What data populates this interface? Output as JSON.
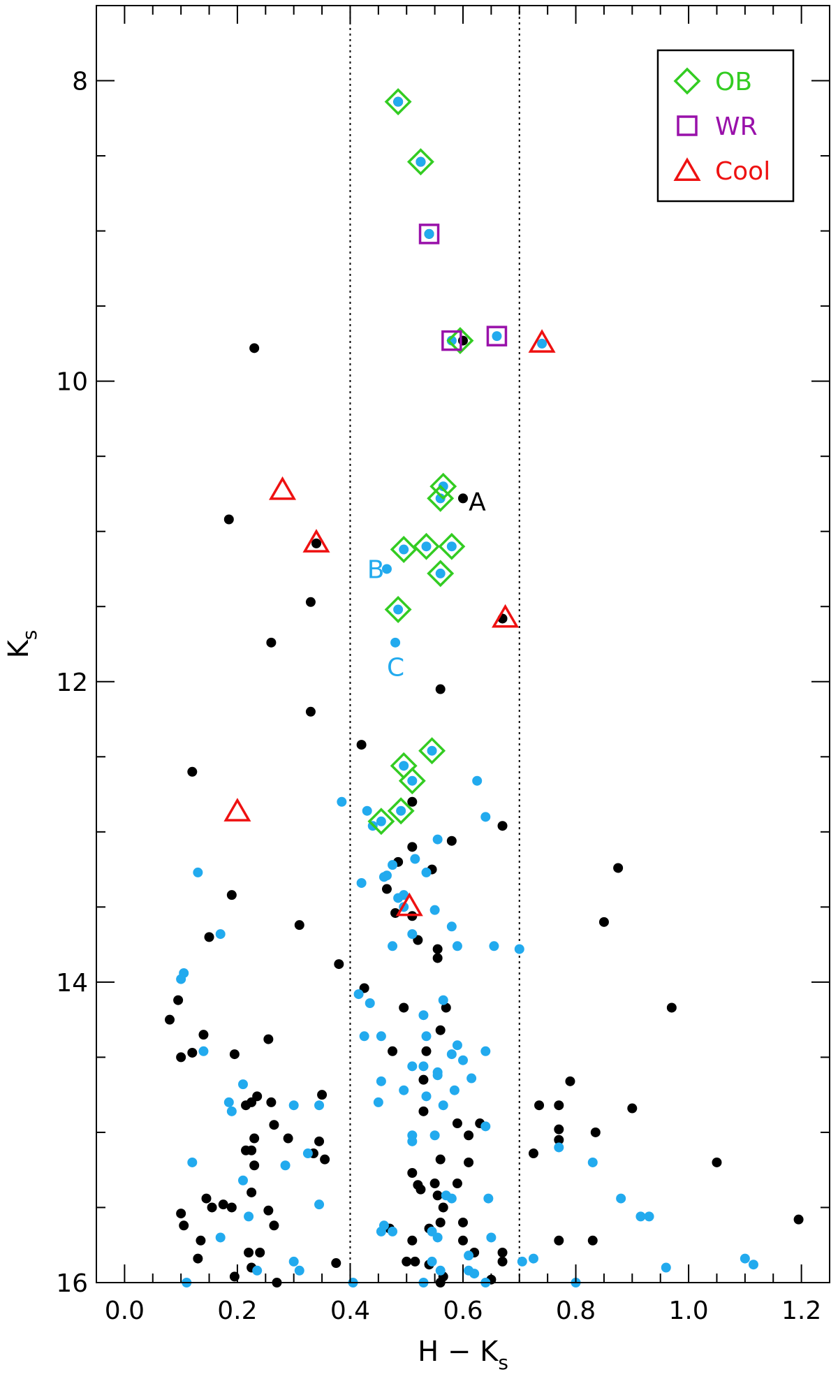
{
  "chart_data": {
    "type": "scatter",
    "xlabel": "H − K",
    "xlabel_sub": "s",
    "ylabel": "K",
    "ylabel_sub": "s",
    "xlim": [
      -0.05,
      1.25
    ],
    "ylim": [
      16,
      7.5
    ],
    "y_inverted": true,
    "x_ticks": [
      "0.0",
      "0.2",
      "0.4",
      "0.6",
      "0.8",
      "1.0",
      "1.2"
    ],
    "y_ticks": [
      "8",
      "10",
      "12",
      "14",
      "16"
    ],
    "vertical_dotted_lines": [
      0.4,
      0.7
    ],
    "legend": {
      "placement": "top-right",
      "entries": [
        {
          "marker": "diamond",
          "label": "OB",
          "color": "#33cc22"
        },
        {
          "marker": "square",
          "label": "WR",
          "color": "#9911aa"
        },
        {
          "marker": "triangle",
          "label": "Cool",
          "color": "#ee1111"
        }
      ]
    },
    "annotations": [
      {
        "text": "A",
        "x": 0.61,
        "y": 10.8,
        "color": "#000000"
      },
      {
        "text": "B",
        "x": 0.43,
        "y": 11.25,
        "color": "#22aaee"
      },
      {
        "text": "C",
        "x": 0.465,
        "y": 11.9,
        "color": "#22aaee"
      }
    ],
    "colors": {
      "black_points": "#000000",
      "blue_points": "#22aaee",
      "ob": "#33cc22",
      "wr": "#9911aa",
      "cool": "#ee1111"
    },
    "ob_stars": [
      [
        0.485,
        8.14
      ],
      [
        0.525,
        8.54
      ],
      [
        0.595,
        9.73
      ],
      [
        0.565,
        10.7
      ],
      [
        0.56,
        10.78
      ],
      [
        0.495,
        11.12
      ],
      [
        0.535,
        11.1
      ],
      [
        0.58,
        11.1
      ],
      [
        0.56,
        11.28
      ],
      [
        0.485,
        11.52
      ],
      [
        0.545,
        12.46
      ],
      [
        0.495,
        12.56
      ],
      [
        0.51,
        12.66
      ],
      [
        0.49,
        12.86
      ],
      [
        0.455,
        12.93
      ]
    ],
    "wr_stars": [
      [
        0.54,
        9.02
      ],
      [
        0.58,
        9.73
      ],
      [
        0.66,
        9.7
      ]
    ],
    "cool_stars": [
      [
        0.74,
        9.75
      ],
      [
        0.28,
        10.73
      ],
      [
        0.34,
        11.08
      ],
      [
        0.675,
        11.58
      ],
      [
        0.2,
        12.87
      ],
      [
        0.505,
        13.5
      ]
    ],
    "black_points": [
      [
        0.485,
        8.14
      ],
      [
        0.525,
        8.54
      ],
      [
        0.54,
        9.02
      ],
      [
        0.23,
        9.78
      ],
      [
        0.6,
        9.73
      ],
      [
        0.6,
        10.78
      ],
      [
        0.185,
        10.92
      ],
      [
        0.34,
        11.08
      ],
      [
        0.33,
        11.47
      ],
      [
        0.26,
        11.74
      ],
      [
        0.67,
        11.58
      ],
      [
        0.56,
        12.05
      ],
      [
        0.33,
        12.2
      ],
      [
        0.42,
        12.42
      ],
      [
        0.12,
        12.6
      ],
      [
        0.51,
        12.8
      ],
      [
        0.67,
        12.96
      ],
      [
        0.58,
        13.06
      ],
      [
        0.51,
        13.1
      ],
      [
        0.545,
        13.25
      ],
      [
        0.485,
        13.2
      ],
      [
        0.19,
        13.42
      ],
      [
        0.465,
        13.38
      ],
      [
        0.48,
        13.54
      ],
      [
        0.51,
        13.56
      ],
      [
        0.875,
        13.24
      ],
      [
        0.85,
        13.6
      ],
      [
        0.31,
        13.62
      ],
      [
        0.15,
        13.7
      ],
      [
        0.52,
        13.72
      ],
      [
        0.555,
        13.78
      ],
      [
        0.555,
        13.84
      ],
      [
        0.38,
        13.88
      ],
      [
        0.425,
        14.04
      ],
      [
        0.495,
        14.17
      ],
      [
        0.56,
        14.32
      ],
      [
        0.57,
        14.17
      ],
      [
        0.97,
        14.17
      ],
      [
        0.08,
        14.25
      ],
      [
        0.095,
        14.12
      ],
      [
        0.14,
        14.35
      ],
      [
        0.255,
        14.38
      ],
      [
        0.1,
        14.5
      ],
      [
        0.12,
        14.47
      ],
      [
        0.195,
        14.48
      ],
      [
        0.475,
        14.46
      ],
      [
        0.535,
        14.46
      ],
      [
        0.53,
        14.65
      ],
      [
        0.79,
        14.66
      ],
      [
        0.35,
        14.75
      ],
      [
        0.235,
        14.76
      ],
      [
        0.225,
        14.8
      ],
      [
        0.26,
        14.8
      ],
      [
        0.215,
        14.82
      ],
      [
        0.735,
        14.82
      ],
      [
        0.77,
        14.82
      ],
      [
        0.9,
        14.84
      ],
      [
        0.53,
        14.86
      ],
      [
        0.59,
        14.94
      ],
      [
        0.63,
        14.94
      ],
      [
        0.265,
        14.95
      ],
      [
        0.77,
        14.98
      ],
      [
        0.835,
        15.0
      ],
      [
        0.61,
        15.02
      ],
      [
        0.23,
        15.04
      ],
      [
        0.29,
        15.04
      ],
      [
        0.345,
        15.06
      ],
      [
        0.215,
        15.12
      ],
      [
        0.225,
        15.12
      ],
      [
        0.77,
        15.05
      ],
      [
        0.725,
        15.14
      ],
      [
        0.335,
        15.14
      ],
      [
        0.355,
        15.18
      ],
      [
        0.56,
        15.18
      ],
      [
        1.05,
        15.2
      ],
      [
        0.23,
        15.22
      ],
      [
        0.61,
        15.2
      ],
      [
        0.51,
        15.27
      ],
      [
        0.52,
        15.35
      ],
      [
        0.525,
        15.38
      ],
      [
        0.55,
        15.34
      ],
      [
        0.59,
        15.34
      ],
      [
        0.225,
        15.4
      ],
      [
        0.145,
        15.44
      ],
      [
        0.175,
        15.48
      ],
      [
        0.19,
        15.5
      ],
      [
        0.255,
        15.52
      ],
      [
        0.155,
        15.5
      ],
      [
        0.555,
        15.42
      ],
      [
        0.565,
        15.5
      ],
      [
        0.1,
        15.54
      ],
      [
        0.105,
        15.62
      ],
      [
        1.195,
        15.58
      ],
      [
        0.56,
        15.6
      ],
      [
        0.6,
        15.6
      ],
      [
        0.265,
        15.62
      ],
      [
        0.47,
        15.64
      ],
      [
        0.54,
        15.64
      ],
      [
        0.135,
        15.72
      ],
      [
        0.51,
        15.72
      ],
      [
        0.6,
        15.72
      ],
      [
        0.77,
        15.72
      ],
      [
        0.83,
        15.72
      ],
      [
        0.22,
        15.8
      ],
      [
        0.24,
        15.8
      ],
      [
        0.62,
        15.8
      ],
      [
        0.67,
        15.8
      ],
      [
        0.13,
        15.84
      ],
      [
        0.5,
        15.86
      ],
      [
        0.515,
        15.86
      ],
      [
        0.67,
        15.86
      ],
      [
        0.225,
        15.9
      ],
      [
        0.375,
        15.87
      ],
      [
        0.54,
        15.88
      ],
      [
        0.195,
        15.96
      ],
      [
        0.565,
        15.96
      ],
      [
        0.65,
        15.98
      ],
      [
        0.27,
        16.0
      ],
      [
        0.56,
        16.0
      ]
    ],
    "blue_points": [
      [
        0.485,
        8.14
      ],
      [
        0.525,
        8.54
      ],
      [
        0.54,
        9.02
      ],
      [
        0.58,
        9.73
      ],
      [
        0.66,
        9.7
      ],
      [
        0.74,
        9.75
      ],
      [
        0.565,
        10.7
      ],
      [
        0.56,
        10.78
      ],
      [
        0.495,
        11.12
      ],
      [
        0.535,
        11.1
      ],
      [
        0.58,
        11.1
      ],
      [
        0.56,
        11.28
      ],
      [
        0.465,
        11.25
      ],
      [
        0.485,
        11.52
      ],
      [
        0.48,
        11.74
      ],
      [
        0.545,
        12.46
      ],
      [
        0.495,
        12.56
      ],
      [
        0.51,
        12.66
      ],
      [
        0.625,
        12.66
      ],
      [
        0.385,
        12.8
      ],
      [
        0.43,
        12.86
      ],
      [
        0.49,
        12.86
      ],
      [
        0.455,
        12.93
      ],
      [
        0.64,
        12.9
      ],
      [
        0.44,
        12.96
      ],
      [
        0.555,
        13.05
      ],
      [
        0.515,
        13.18
      ],
      [
        0.475,
        13.22
      ],
      [
        0.535,
        13.27
      ],
      [
        0.465,
        13.29
      ],
      [
        0.13,
        13.27
      ],
      [
        0.42,
        13.34
      ],
      [
        0.46,
        13.3
      ],
      [
        0.485,
        13.44
      ],
      [
        0.495,
        13.42
      ],
      [
        0.495,
        13.5
      ],
      [
        0.55,
        13.52
      ],
      [
        0.17,
        13.68
      ],
      [
        0.51,
        13.68
      ],
      [
        0.58,
        13.63
      ],
      [
        0.475,
        13.76
      ],
      [
        0.59,
        13.76
      ],
      [
        0.655,
        13.76
      ],
      [
        0.7,
        13.78
      ],
      [
        0.105,
        13.94
      ],
      [
        0.1,
        13.98
      ],
      [
        0.415,
        14.08
      ],
      [
        0.435,
        14.14
      ],
      [
        0.565,
        14.12
      ],
      [
        0.53,
        14.22
      ],
      [
        0.425,
        14.36
      ],
      [
        0.455,
        14.36
      ],
      [
        0.14,
        14.46
      ],
      [
        0.535,
        14.36
      ],
      [
        0.59,
        14.42
      ],
      [
        0.58,
        14.48
      ],
      [
        0.64,
        14.46
      ],
      [
        0.6,
        14.52
      ],
      [
        0.51,
        14.56
      ],
      [
        0.53,
        14.56
      ],
      [
        0.555,
        14.6
      ],
      [
        0.555,
        14.62
      ],
      [
        0.615,
        14.64
      ],
      [
        0.455,
        14.66
      ],
      [
        0.21,
        14.68
      ],
      [
        0.495,
        14.72
      ],
      [
        0.535,
        14.76
      ],
      [
        0.585,
        14.72
      ],
      [
        0.45,
        14.8
      ],
      [
        0.185,
        14.8
      ],
      [
        0.19,
        14.86
      ],
      [
        0.3,
        14.82
      ],
      [
        0.345,
        14.82
      ],
      [
        0.565,
        14.82
      ],
      [
        0.64,
        14.96
      ],
      [
        0.51,
        15.02
      ],
      [
        0.51,
        15.06
      ],
      [
        0.55,
        15.02
      ],
      [
        0.325,
        15.14
      ],
      [
        0.77,
        15.1
      ],
      [
        0.12,
        15.2
      ],
      [
        0.285,
        15.22
      ],
      [
        0.83,
        15.2
      ],
      [
        0.21,
        15.32
      ],
      [
        0.57,
        15.42
      ],
      [
        0.58,
        15.44
      ],
      [
        0.645,
        15.44
      ],
      [
        0.88,
        15.44
      ],
      [
        0.345,
        15.48
      ],
      [
        0.22,
        15.56
      ],
      [
        0.915,
        15.56
      ],
      [
        0.93,
        15.56
      ],
      [
        0.455,
        15.66
      ],
      [
        0.46,
        15.62
      ],
      [
        0.475,
        15.66
      ],
      [
        0.545,
        15.66
      ],
      [
        0.555,
        15.7
      ],
      [
        0.65,
        15.7
      ],
      [
        0.17,
        15.7
      ],
      [
        0.61,
        15.82
      ],
      [
        0.705,
        15.86
      ],
      [
        0.725,
        15.84
      ],
      [
        0.3,
        15.86
      ],
      [
        0.545,
        15.86
      ],
      [
        0.61,
        15.92
      ],
      [
        0.235,
        15.92
      ],
      [
        0.31,
        15.92
      ],
      [
        0.56,
        15.92
      ],
      [
        0.96,
        15.9
      ],
      [
        1.1,
        15.84
      ],
      [
        1.115,
        15.88
      ],
      [
        0.62,
        15.94
      ],
      [
        0.11,
        16.0
      ],
      [
        0.405,
        16.0
      ],
      [
        0.53,
        16.0
      ],
      [
        0.64,
        16.0
      ],
      [
        0.8,
        16.0
      ]
    ]
  }
}
